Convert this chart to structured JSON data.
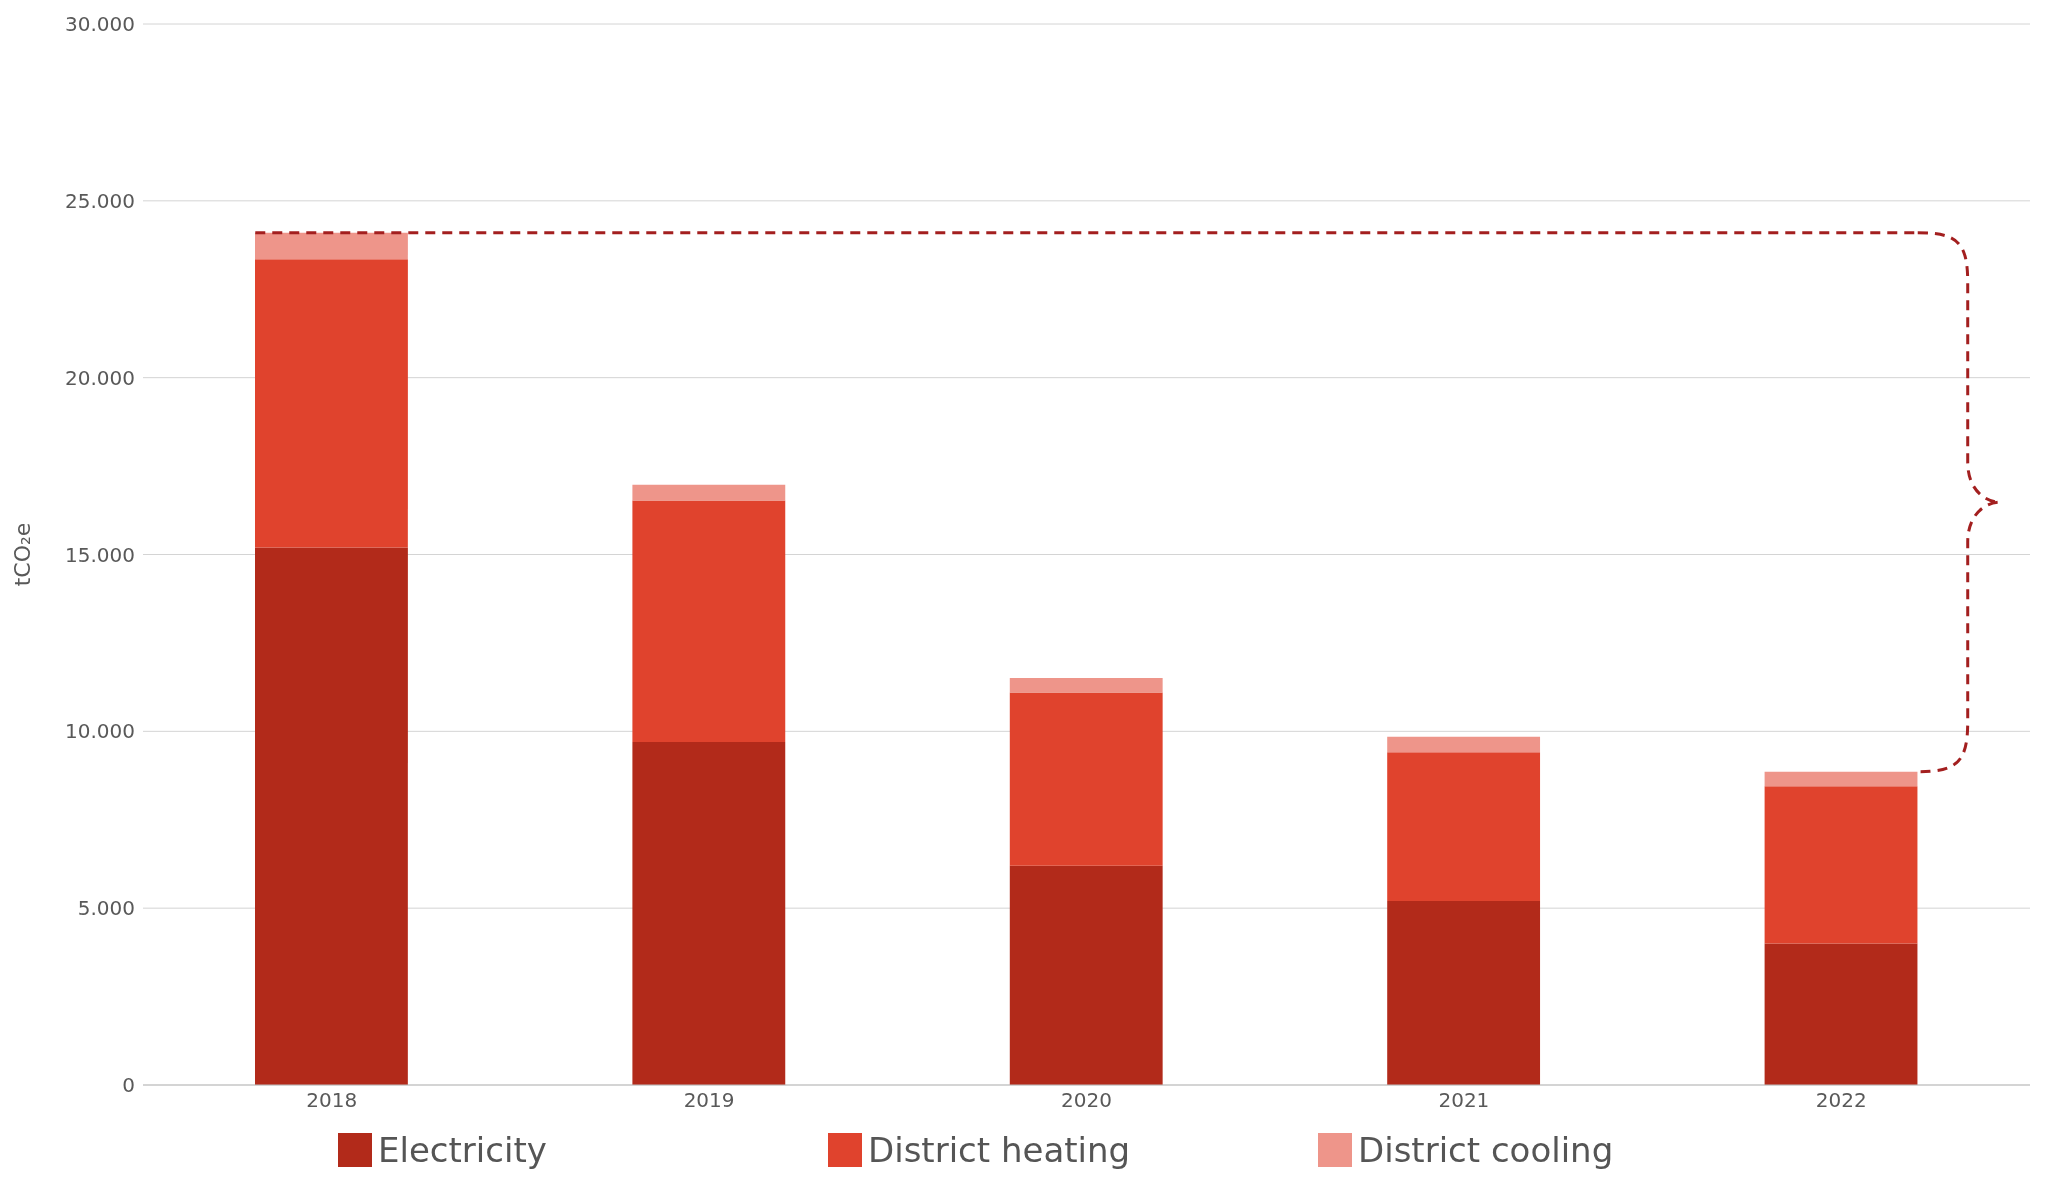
{
  "chart_data": {
    "type": "bar",
    "stacked": true,
    "ylabel": "tCO₂e",
    "categories": [
      "2018",
      "2019",
      "2020",
      "2021",
      "2022"
    ],
    "series": [
      {
        "name": "Electricity",
        "color": "#b22a1a",
        "values": [
          15200,
          9700,
          6200,
          5200,
          4000
        ]
      },
      {
        "name": "District heating",
        "color": "#e0432d",
        "values": [
          8150,
          6830,
          4900,
          4210,
          4450
        ]
      },
      {
        "name": "District cooling",
        "color": "#ee958a",
        "values": [
          750,
          440,
          410,
          440,
          410
        ]
      }
    ],
    "ylim": [
      0,
      30000
    ],
    "yticks": [
      {
        "value": 0,
        "label": "0"
      },
      {
        "value": 5000,
        "label": "5.000"
      },
      {
        "value": 10000,
        "label": "10.000"
      },
      {
        "value": 15000,
        "label": "15.000"
      },
      {
        "value": 20000,
        "label": "20.000"
      },
      {
        "value": 25000,
        "label": "25.000"
      },
      {
        "value": 30000,
        "label": "30.000"
      }
    ],
    "ref_lines": [
      {
        "axis": "y",
        "value": 24100,
        "color": "#a31f1f",
        "line_style": "dashed"
      }
    ],
    "grid": "y",
    "legend": "bottom"
  }
}
